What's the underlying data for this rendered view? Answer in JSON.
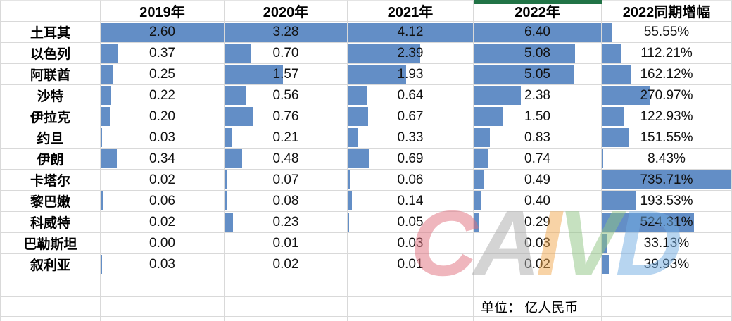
{
  "unit_label": "单位： 亿人民币",
  "table": {
    "corner_label": "",
    "columns": [
      "2019年",
      "2020年",
      "2021年",
      "2022年",
      "2022同期增幅"
    ]
  },
  "chart_data": {
    "type": "table",
    "title": "",
    "xlabel": "",
    "ylabel": "",
    "note": "单位： 亿人民币",
    "categories": [
      "土耳其",
      "以色列",
      "阿联酋",
      "沙特",
      "伊拉克",
      "约旦",
      "伊朗",
      "卡塔尔",
      "黎巴嫩",
      "科威特",
      "巴勒斯坦",
      "叙利亚"
    ],
    "series": [
      {
        "name": "2019年",
        "format": "0.00",
        "bar_scale_max": 2.6,
        "values": [
          2.6,
          0.37,
          0.25,
          0.22,
          0.2,
          0.03,
          0.34,
          0.02,
          0.06,
          0.02,
          0.0,
          0.03
        ]
      },
      {
        "name": "2020年",
        "format": "0.00",
        "bar_scale_max": 3.28,
        "values": [
          3.28,
          0.7,
          1.57,
          0.56,
          0.76,
          0.21,
          0.48,
          0.07,
          0.08,
          0.23,
          0.01,
          0.02
        ]
      },
      {
        "name": "2021年",
        "format": "0.00",
        "bar_scale_max": 4.12,
        "values": [
          4.12,
          2.39,
          1.93,
          0.64,
          0.67,
          0.33,
          0.69,
          0.06,
          0.14,
          0.05,
          0.03,
          0.01
        ]
      },
      {
        "name": "2022年",
        "format": "0.00",
        "bar_scale_max": 6.4,
        "values": [
          6.4,
          5.08,
          5.05,
          2.38,
          1.5,
          0.83,
          0.74,
          0.49,
          0.4,
          0.29,
          0.03,
          0.02
        ]
      },
      {
        "name": "2022同期增幅",
        "format": "0.00%",
        "bar_scale_max": 735.71,
        "values": [
          55.55,
          112.21,
          162.12,
          270.97,
          122.93,
          151.55,
          8.43,
          735.71,
          193.53,
          524.31,
          33.13,
          39.93
        ]
      }
    ],
    "legend_position": "none",
    "grid": true
  },
  "watermark": {
    "text": "CAIVD",
    "letters": [
      {
        "char": "C",
        "color": "#E0707E"
      },
      {
        "char": "A",
        "color": "#ABABAB"
      },
      {
        "char": "I",
        "color": "#F2A94F"
      },
      {
        "char": "V",
        "color": "#8FC583"
      },
      {
        "char": "D",
        "color": "#72ACE3"
      }
    ]
  },
  "colors": {
    "data_bar": "#638EC6",
    "gridline": "#D9D9D9",
    "accent_strip": "#217346",
    "text": "#111111"
  }
}
